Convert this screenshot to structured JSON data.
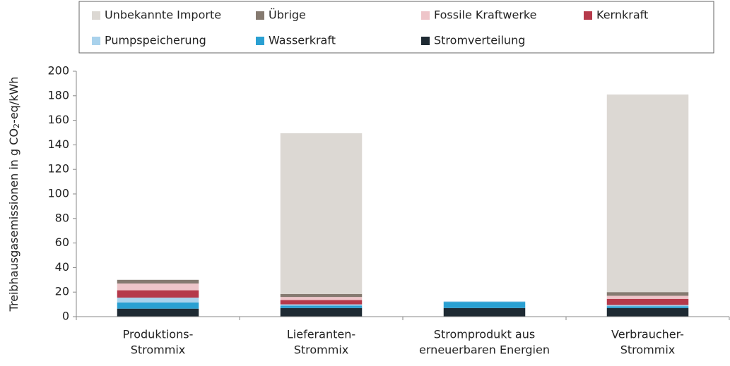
{
  "chart_data": {
    "type": "stacked_bar",
    "y_label": {
      "text": "Treibhausgasemissionen  in  g CO",
      "subscript": "2",
      "suffix": "-eq/kWh"
    },
    "categories": [
      [
        "Produktions-",
        "Strommix"
      ],
      [
        "Lieferanten-",
        "Strommix"
      ],
      [
        "Stromprodukt aus",
        "erneuerbaren Energien"
      ],
      [
        "Verbraucher-",
        "Strommix"
      ]
    ],
    "series": [
      {
        "name": "Unbekannte Importe",
        "color": "#dcd8d3",
        "values": [
          0,
          131,
          0,
          161
        ]
      },
      {
        "name": "Übrige",
        "color": "#857a70",
        "values": [
          3,
          2.5,
          0,
          3
        ]
      },
      {
        "name": "Fossile Kraftwerke",
        "color": "#eec5c9",
        "values": [
          5.5,
          2.5,
          0,
          2.5
        ]
      },
      {
        "name": "Kernkraft",
        "color": "#b5394a",
        "values": [
          6,
          3.5,
          0,
          5
        ]
      },
      {
        "name": "Pumpspeicherung",
        "color": "#a9d2ec",
        "values": [
          4,
          1,
          0.5,
          1
        ]
      },
      {
        "name": "Wasserkraft",
        "color": "#2aa0d2",
        "values": [
          5,
          2,
          5,
          1.5
        ]
      },
      {
        "name": "Stromverteilung",
        "color": "#1e2a33",
        "values": [
          6.5,
          7,
          7,
          7
        ]
      }
    ],
    "ylim": [
      0,
      200
    ],
    "yticks": [
      0,
      20,
      40,
      60,
      80,
      100,
      120,
      140,
      160,
      180,
      200
    ],
    "grid": false
  }
}
